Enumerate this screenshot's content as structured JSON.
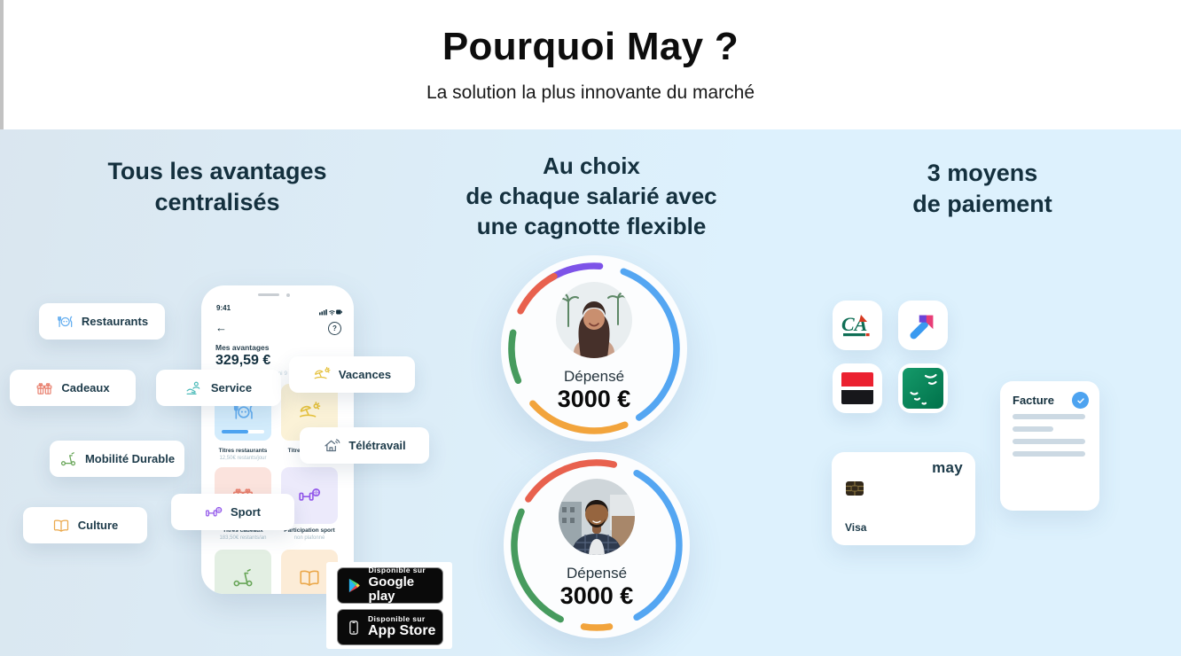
{
  "colors": {
    "page_bg_left": "#dae6ef",
    "page_bg_right": "#ddf1fd",
    "header_bg": "#ffffff",
    "title_text": "#0d0d0d",
    "navy_text": "#14303e",
    "accent_blue": "#4da3f0",
    "check_blue": "#4da3f0",
    "badge_bg": "#0a0a0a",
    "icon_blue": "#64aef0",
    "icon_coral": "#e87f6d",
    "icon_teal": "#4fbcba",
    "icon_yellow": "#e5c13d",
    "icon_slate": "#5d7081",
    "icon_purple": "#9257ea",
    "icon_green": "#67a557",
    "icon_orange": "#eba84b"
  },
  "header": {
    "title": "Pourquoi May ?",
    "subtitle": "La solution la plus innovante du marché"
  },
  "benefits": {
    "title_line1": "Tous les avantages",
    "title_line2": "centralisés",
    "pills": [
      {
        "label": "Restaurants",
        "icon": "restaurant-icon"
      },
      {
        "label": "Cadeaux",
        "icon": "gift-icon"
      },
      {
        "label": "Service",
        "icon": "helping-hand-icon"
      },
      {
        "label": "Vacances",
        "icon": "beach-umbrella-icon"
      },
      {
        "label": "Télétravail",
        "icon": "home-wifi-icon"
      },
      {
        "label": "Mobilité Durable",
        "icon": "scooter-icon"
      },
      {
        "label": "Sport",
        "icon": "dumbbell-icon"
      },
      {
        "label": "Culture",
        "icon": "open-book-icon"
      }
    ],
    "phone": {
      "time": "9:41",
      "back_arrow": "←",
      "help": "?",
      "screen_title": "Mes avantages",
      "balance": "329,59 €",
      "balance_note": "restants à dépenser parmi 9 avantages",
      "cards": [
        {
          "title": "Titres restaurants",
          "subtitle": "12,50€ restants/jour"
        },
        {
          "title": "Titres vacances",
          "subtitle": ""
        },
        {
          "title": "Titres cadeaux",
          "subtitle": "183,50€ restants/an"
        },
        {
          "title": "Participation sport",
          "subtitle": "non plafonné"
        }
      ]
    },
    "store_badges": {
      "google": {
        "top": "Disponible sur",
        "bottom": "Google play"
      },
      "apple": {
        "top": "Disponible sur",
        "bottom": "App Store"
      }
    }
  },
  "choice": {
    "title_line1": "Au choix",
    "title_line2": "de chaque salarié avec",
    "title_line3": "une cagnotte flexible",
    "users": [
      {
        "spent_label": "Dépensé",
        "amount": "3000 €",
        "ring": [
          {
            "color": "#7d53e8",
            "start": -33,
            "end": 4
          },
          {
            "color": "#54a6f2",
            "start": 21,
            "end": 147
          },
          {
            "color": "#f2a43c",
            "start": 158,
            "end": 228
          },
          {
            "color": "#479b5e",
            "start": 247,
            "end": 281
          },
          {
            "color": "#e8614e",
            "start": 297,
            "end": 331
          }
        ]
      },
      {
        "spent_label": "Dépensé",
        "amount": "3000 €",
        "ring": [
          {
            "color": "#e8614e",
            "start": -56,
            "end": 12
          },
          {
            "color": "#54a6f2",
            "start": 29,
            "end": 151
          },
          {
            "color": "#f2a43c",
            "start": 171,
            "end": 189
          },
          {
            "color": "#479b5e",
            "start": 206,
            "end": 294
          }
        ]
      }
    ]
  },
  "payment": {
    "title_line1": "3 moyens",
    "title_line2": "de paiement",
    "ca_text": "CA",
    "bank_logos": [
      "credit-agricole-logo",
      "arrow-pay-logo",
      "societe-generale-logo",
      "bnp-paribas-logo"
    ],
    "invoice": {
      "label": "Facture"
    },
    "card": {
      "brand": "may",
      "network": "Visa"
    }
  }
}
